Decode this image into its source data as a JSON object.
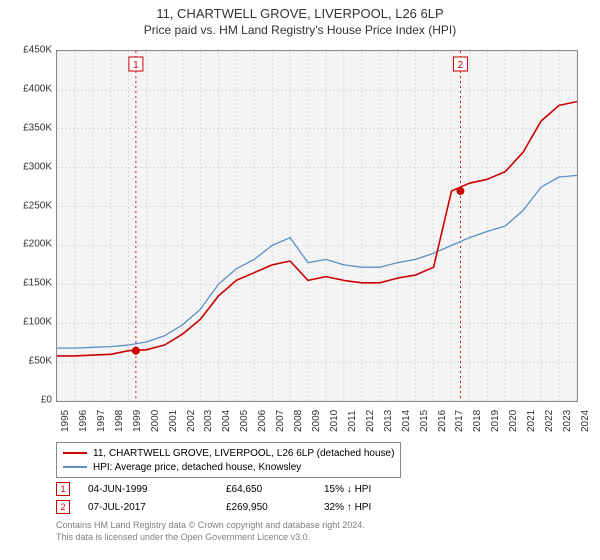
{
  "titles": {
    "line1": "11, CHARTWELL GROVE, LIVERPOOL, L26 6LP",
    "line2": "Price paid vs. HM Land Registry's House Price Index (HPI)"
  },
  "chart": {
    "type": "line",
    "background_color": "#f4f4f4",
    "grid_color": "#cccccc",
    "border_color": "#888888",
    "x_years": [
      1995,
      1996,
      1997,
      1998,
      1999,
      2000,
      2001,
      2002,
      2003,
      2004,
      2005,
      2006,
      2007,
      2008,
      2009,
      2010,
      2011,
      2012,
      2013,
      2014,
      2015,
      2016,
      2017,
      2018,
      2019,
      2020,
      2021,
      2022,
      2023,
      2024
    ],
    "ylim": [
      0,
      450000
    ],
    "ytick_step": 50000,
    "yticks": [
      "£0",
      "£50K",
      "£100K",
      "£150K",
      "£200K",
      "£250K",
      "£300K",
      "£350K",
      "£400K",
      "£450K"
    ],
    "series": [
      {
        "name": "price_paid",
        "label": "11, CHARTWELL GROVE, LIVERPOOL, L26 6LP (detached house)",
        "color": "#cc0000",
        "line_width": 1.6,
        "values_by_year": {
          "1995": 58000,
          "1996": 58000,
          "1997": 59000,
          "1998": 60000,
          "1999": 64650,
          "2000": 66000,
          "2001": 72000,
          "2002": 86000,
          "2003": 105000,
          "2004": 135000,
          "2005": 155000,
          "2006": 165000,
          "2007": 175000,
          "2008": 180000,
          "2009": 155000,
          "2010": 160000,
          "2011": 155000,
          "2012": 152000,
          "2013": 152000,
          "2014": 158000,
          "2015": 162000,
          "2016": 172000,
          "2017": 269950,
          "2018": 280000,
          "2019": 285000,
          "2020": 295000,
          "2021": 320000,
          "2022": 360000,
          "2023": 380000,
          "2024": 385000
        }
      },
      {
        "name": "hpi",
        "label": "HPI: Average price, detached house, Knowsley",
        "color": "#5b8fc7",
        "line_width": 1.3,
        "values_by_year": {
          "1995": 68000,
          "1996": 68000,
          "1997": 69000,
          "1998": 70000,
          "1999": 72000,
          "2000": 76000,
          "2001": 84000,
          "2002": 98000,
          "2003": 118000,
          "2004": 150000,
          "2005": 170000,
          "2006": 182000,
          "2007": 200000,
          "2008": 210000,
          "2009": 178000,
          "2010": 182000,
          "2011": 175000,
          "2012": 172000,
          "2013": 172000,
          "2014": 178000,
          "2015": 182000,
          "2016": 190000,
          "2017": 200000,
          "2018": 210000,
          "2019": 218000,
          "2020": 225000,
          "2021": 245000,
          "2022": 275000,
          "2023": 288000,
          "2024": 290000
        }
      }
    ],
    "event_lines": [
      {
        "year": 1999.4,
        "color": "#cc0000",
        "dash": "2,3",
        "badge": "1"
      },
      {
        "year": 2017.5,
        "color": "#cc0000",
        "dash": "2,3",
        "badge": "2"
      }
    ],
    "sale_points": [
      {
        "year": 1999.4,
        "value": 64650,
        "color": "#cc0000"
      },
      {
        "year": 2017.5,
        "value": 269950,
        "color": "#cc0000"
      }
    ]
  },
  "legend": {
    "items": [
      {
        "color": "#cc0000",
        "label": "11, CHARTWELL GROVE, LIVERPOOL, L26 6LP (detached house)"
      },
      {
        "color": "#5b8fc7",
        "label": "HPI: Average price, detached house, Knowsley"
      }
    ]
  },
  "markers": [
    {
      "badge": "1",
      "date": "04-JUN-1999",
      "price": "£64,650",
      "delta": "15% ↓ HPI"
    },
    {
      "badge": "2",
      "date": "07-JUL-2017",
      "price": "£269,950",
      "delta": "32% ↑ HPI"
    }
  ],
  "footer": {
    "line1": "Contains HM Land Registry data © Crown copyright and database right 2024.",
    "line2": "This data is licensed under the Open Government Licence v3.0."
  },
  "style": {
    "badge_border": "#cc0000",
    "text_color": "#333333",
    "footer_color": "#808080",
    "font_family": "Arial, sans-serif",
    "title_fontsize": 13,
    "subtitle_fontsize": 12,
    "axis_fontsize": 10,
    "legend_fontsize": 10
  }
}
